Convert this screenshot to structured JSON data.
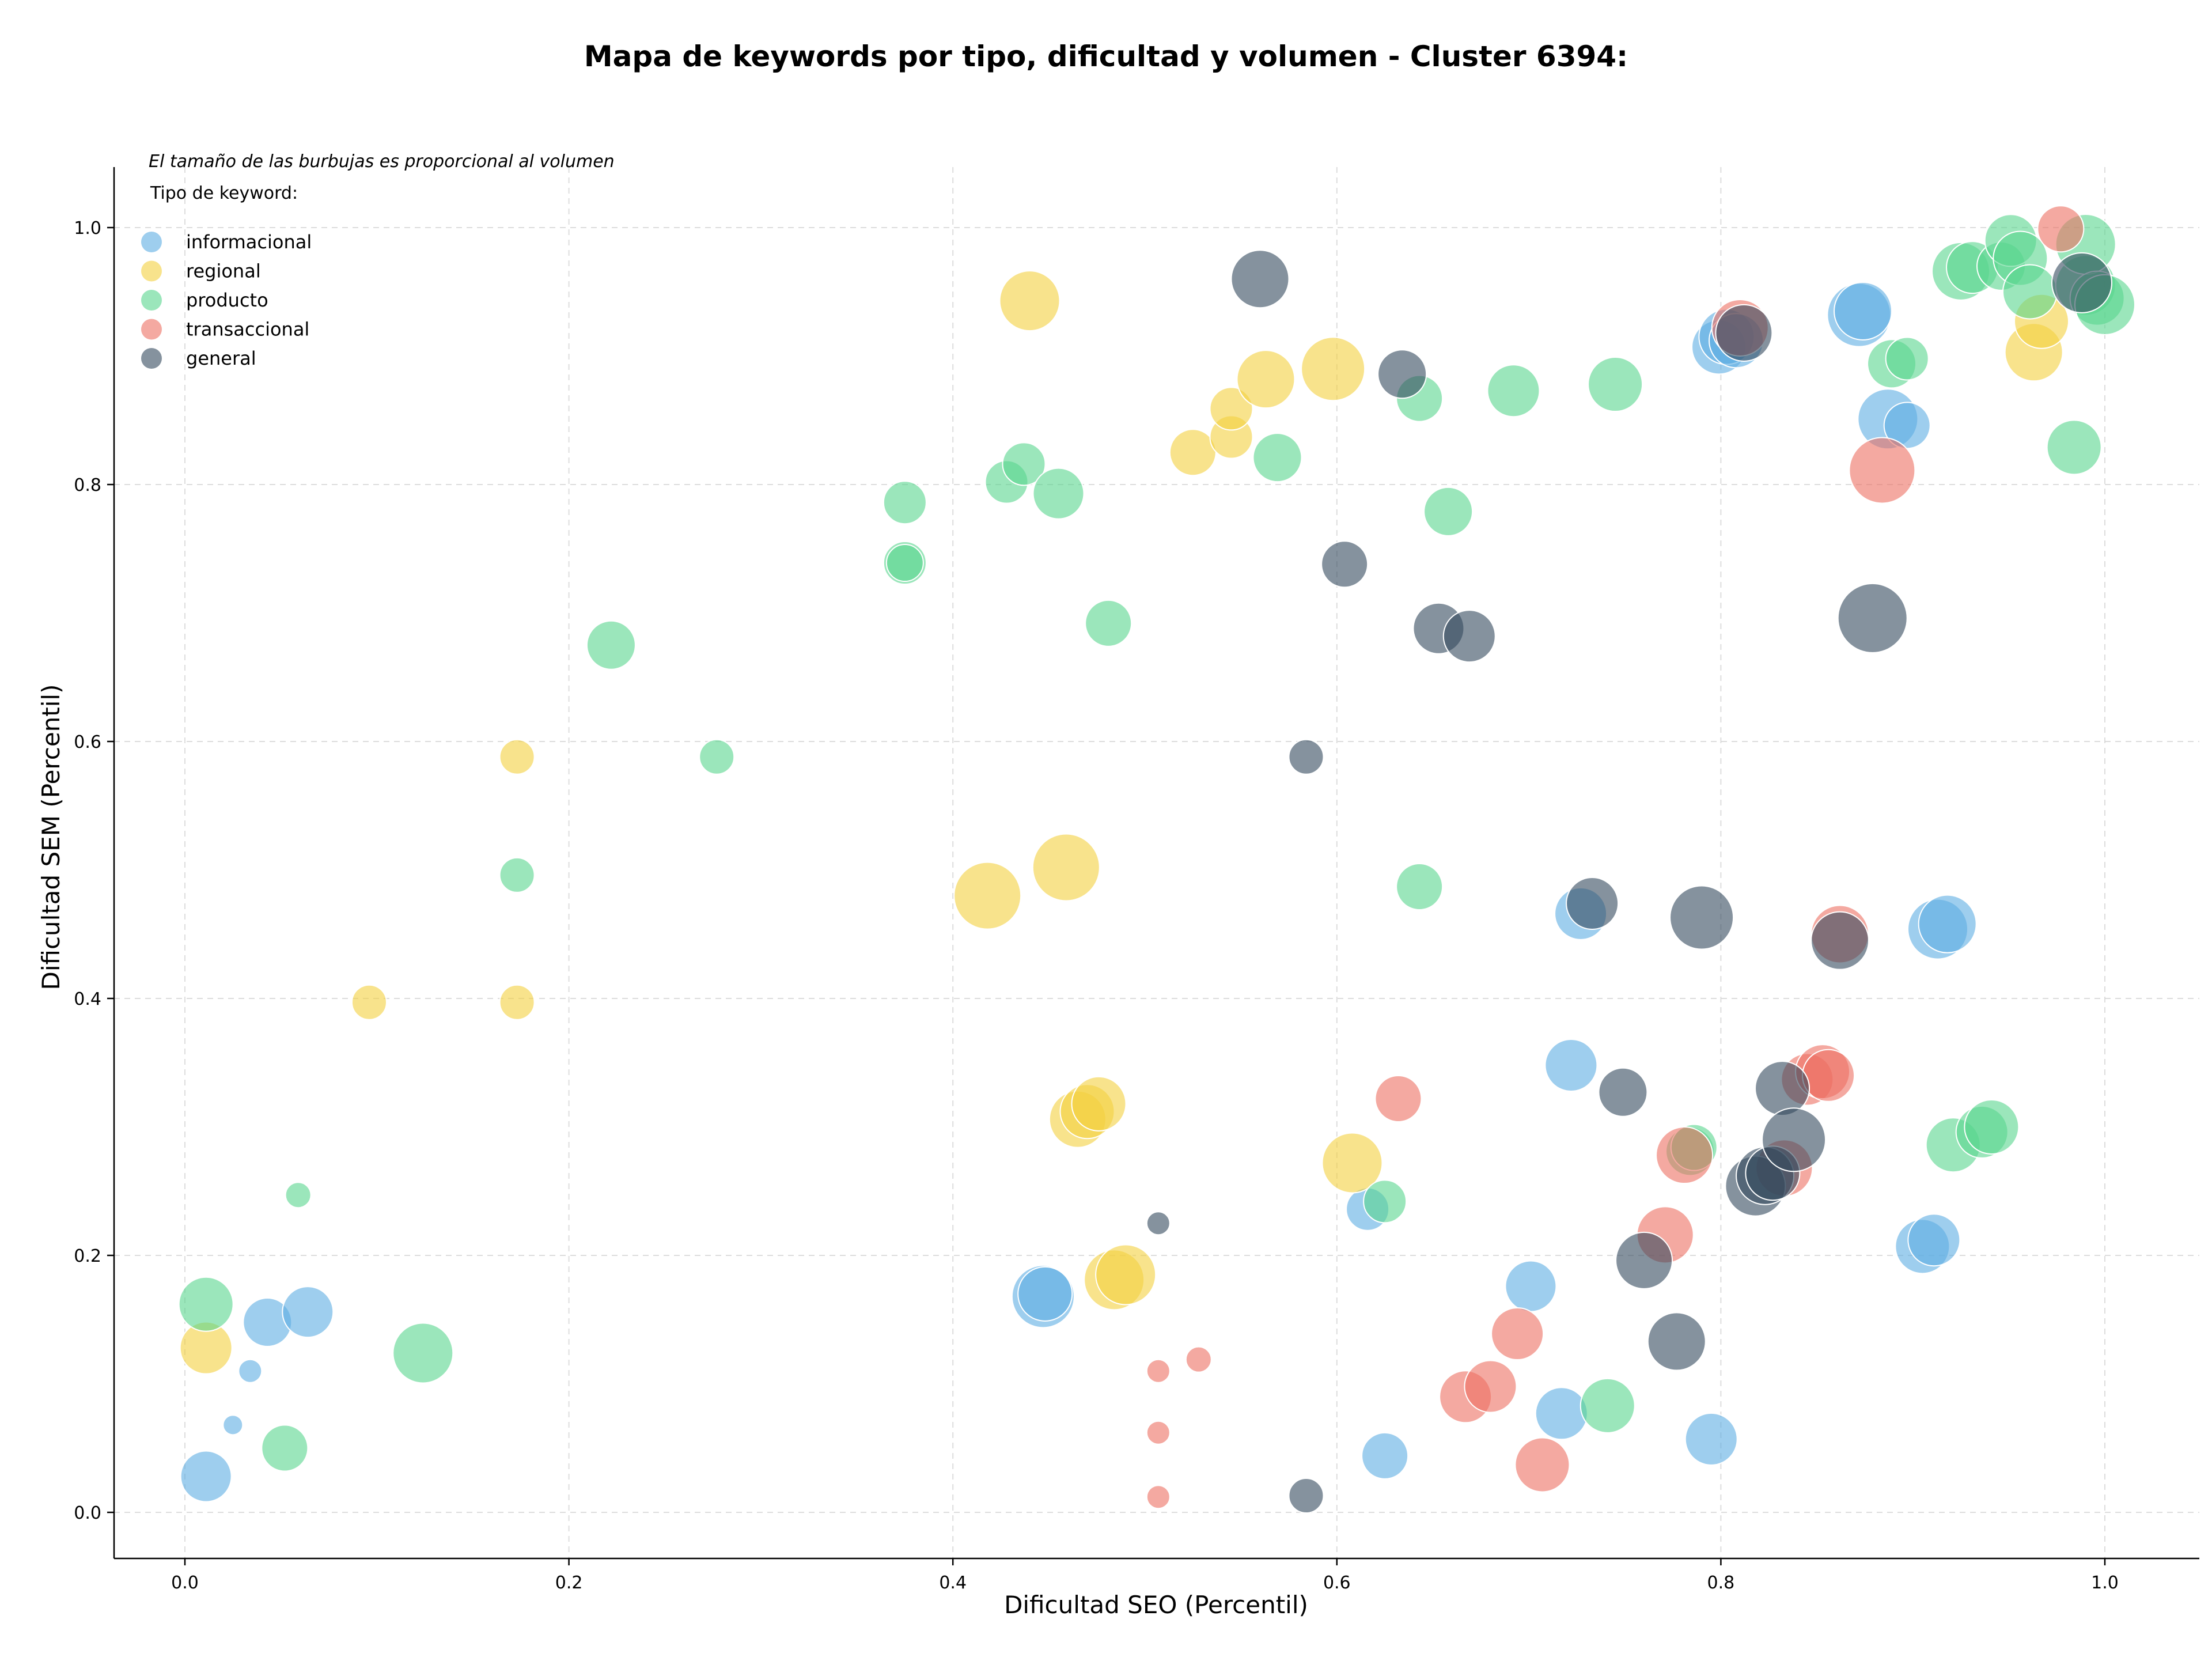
{
  "chart_data": {
    "type": "scatter",
    "title": "Mapa de keywords por tipo, dificultad y volumen - Cluster 6394:",
    "xlabel": "Dificultad SEO (Percentil)",
    "ylabel": "Dificultad SEM (Percentil)",
    "xlim": [
      -0.036,
      1.048
    ],
    "ylim": [
      -0.036,
      1.048
    ],
    "xticks": [
      "0.0",
      "0.2",
      "0.4",
      "0.6",
      "0.8",
      "1.0"
    ],
    "yticks": [
      "0.0",
      "0.2",
      "0.4",
      "0.6",
      "0.8",
      "1.0"
    ],
    "grid": true,
    "note": "El tamaño de las burbujas es proporcional al volumen",
    "legend_title": "Tipo de keyword:",
    "legend_position": "top-left",
    "series": [
      {
        "name": "informacional",
        "color": "#5DADE2",
        "points": [
          {
            "x": 0.011,
            "y": 0.028,
            "s": 44
          },
          {
            "x": 0.025,
            "y": 0.068,
            "s": 17
          },
          {
            "x": 0.034,
            "y": 0.11,
            "s": 20
          },
          {
            "x": 0.043,
            "y": 0.148,
            "s": 42
          },
          {
            "x": 0.064,
            "y": 0.156,
            "s": 44
          },
          {
            "x": 0.447,
            "y": 0.168,
            "s": 54
          },
          {
            "x": 0.448,
            "y": 0.17,
            "s": 47
          },
          {
            "x": 0.616,
            "y": 0.236,
            "s": 37
          },
          {
            "x": 0.625,
            "y": 0.044,
            "s": 40
          },
          {
            "x": 0.701,
            "y": 0.176,
            "s": 44
          },
          {
            "x": 0.717,
            "y": 0.077,
            "s": 45
          },
          {
            "x": 0.722,
            "y": 0.348,
            "s": 45
          },
          {
            "x": 0.727,
            "y": 0.466,
            "s": 45
          },
          {
            "x": 0.795,
            "y": 0.057,
            "s": 45
          },
          {
            "x": 0.799,
            "y": 0.907,
            "s": 47
          },
          {
            "x": 0.803,
            "y": 0.915,
            "s": 48
          },
          {
            "x": 0.808,
            "y": 0.912,
            "s": 47
          },
          {
            "x": 0.872,
            "y": 0.932,
            "s": 55
          },
          {
            "x": 0.874,
            "y": 0.935,
            "s": 50
          },
          {
            "x": 0.887,
            "y": 0.851,
            "s": 52
          },
          {
            "x": 0.897,
            "y": 0.846,
            "s": 40
          },
          {
            "x": 0.905,
            "y": 0.207,
            "s": 47
          },
          {
            "x": 0.911,
            "y": 0.212,
            "s": 45
          },
          {
            "x": 0.913,
            "y": 0.454,
            "s": 52
          },
          {
            "x": 0.918,
            "y": 0.458,
            "s": 50
          }
        ]
      },
      {
        "name": "regional",
        "color": "#F4D03F",
        "points": [
          {
            "x": 0.011,
            "y": 0.128,
            "s": 45
          },
          {
            "x": 0.096,
            "y": 0.397,
            "s": 30
          },
          {
            "x": 0.173,
            "y": 0.397,
            "s": 30
          },
          {
            "x": 0.173,
            "y": 0.588,
            "s": 30
          },
          {
            "x": 0.418,
            "y": 0.48,
            "s": 58
          },
          {
            "x": 0.44,
            "y": 0.943,
            "s": 52
          },
          {
            "x": 0.459,
            "y": 0.502,
            "s": 58
          },
          {
            "x": 0.465,
            "y": 0.306,
            "s": 49
          },
          {
            "x": 0.47,
            "y": 0.312,
            "s": 47
          },
          {
            "x": 0.476,
            "y": 0.318,
            "s": 47
          },
          {
            "x": 0.484,
            "y": 0.181,
            "s": 52
          },
          {
            "x": 0.49,
            "y": 0.185,
            "s": 52
          },
          {
            "x": 0.525,
            "y": 0.825,
            "s": 40
          },
          {
            "x": 0.545,
            "y": 0.837,
            "s": 37
          },
          {
            "x": 0.545,
            "y": 0.859,
            "s": 37
          },
          {
            "x": 0.563,
            "y": 0.882,
            "s": 50
          },
          {
            "x": 0.598,
            "y": 0.89,
            "s": 55
          },
          {
            "x": 0.608,
            "y": 0.272,
            "s": 52
          },
          {
            "x": 0.963,
            "y": 0.903,
            "s": 50
          },
          {
            "x": 0.967,
            "y": 0.927,
            "s": 47
          }
        ]
      },
      {
        "name": "producto",
        "color": "#58D68D",
        "points": [
          {
            "x": 0.011,
            "y": 0.162,
            "s": 47
          },
          {
            "x": 0.052,
            "y": 0.05,
            "s": 40
          },
          {
            "x": 0.059,
            "y": 0.247,
            "s": 22
          },
          {
            "x": 0.124,
            "y": 0.124,
            "s": 52
          },
          {
            "x": 0.173,
            "y": 0.496,
            "s": 30
          },
          {
            "x": 0.222,
            "y": 0.675,
            "s": 42
          },
          {
            "x": 0.277,
            "y": 0.588,
            "s": 30
          },
          {
            "x": 0.375,
            "y": 0.786,
            "s": 37
          },
          {
            "x": 0.375,
            "y": 0.739,
            "s": 37
          },
          {
            "x": 0.375,
            "y": 0.739,
            "s": 32
          },
          {
            "x": 0.428,
            "y": 0.802,
            "s": 37
          },
          {
            "x": 0.437,
            "y": 0.816,
            "s": 37
          },
          {
            "x": 0.455,
            "y": 0.793,
            "s": 44
          },
          {
            "x": 0.481,
            "y": 0.692,
            "s": 40
          },
          {
            "x": 0.569,
            "y": 0.821,
            "s": 42
          },
          {
            "x": 0.625,
            "y": 0.242,
            "s": 37
          },
          {
            "x": 0.643,
            "y": 0.867,
            "s": 40
          },
          {
            "x": 0.643,
            "y": 0.487,
            "s": 40
          },
          {
            "x": 0.658,
            "y": 0.779,
            "s": 42
          },
          {
            "x": 0.692,
            "y": 0.873,
            "s": 45
          },
          {
            "x": 0.741,
            "y": 0.083,
            "s": 47
          },
          {
            "x": 0.745,
            "y": 0.878,
            "s": 47
          },
          {
            "x": 0.784,
            "y": 0.281,
            "s": 42
          },
          {
            "x": 0.786,
            "y": 0.284,
            "s": 40
          },
          {
            "x": 0.889,
            "y": 0.894,
            "s": 42
          },
          {
            "x": 0.897,
            "y": 0.898,
            "s": 37
          },
          {
            "x": 0.921,
            "y": 0.286,
            "s": 47
          },
          {
            "x": 0.925,
            "y": 0.966,
            "s": 50
          },
          {
            "x": 0.931,
            "y": 0.969,
            "s": 45
          },
          {
            "x": 0.936,
            "y": 0.296,
            "s": 45
          },
          {
            "x": 0.941,
            "y": 0.3,
            "s": 47
          },
          {
            "x": 0.946,
            "y": 0.97,
            "s": 42
          },
          {
            "x": 0.951,
            "y": 0.99,
            "s": 45
          },
          {
            "x": 0.956,
            "y": 0.976,
            "s": 47
          },
          {
            "x": 0.961,
            "y": 0.95,
            "s": 47
          },
          {
            "x": 0.984,
            "y": 0.829,
            "s": 47
          },
          {
            "x": 0.99,
            "y": 0.955,
            "s": 52
          },
          {
            "x": 0.99,
            "y": 0.987,
            "s": 52
          },
          {
            "x": 0.996,
            "y": 0.945,
            "s": 47
          },
          {
            "x": 1.0,
            "y": 0.94,
            "s": 52
          }
        ]
      },
      {
        "name": "transaccional",
        "color": "#EC7063",
        "points": [
          {
            "x": 0.507,
            "y": 0.012,
            "s": 20
          },
          {
            "x": 0.507,
            "y": 0.062,
            "s": 20
          },
          {
            "x": 0.507,
            "y": 0.11,
            "s": 20
          },
          {
            "x": 0.528,
            "y": 0.119,
            "s": 22
          },
          {
            "x": 0.632,
            "y": 0.322,
            "s": 40
          },
          {
            "x": 0.667,
            "y": 0.09,
            "s": 45
          },
          {
            "x": 0.68,
            "y": 0.098,
            "s": 45
          },
          {
            "x": 0.694,
            "y": 0.139,
            "s": 45
          },
          {
            "x": 0.707,
            "y": 0.037,
            "s": 47
          },
          {
            "x": 0.771,
            "y": 0.216,
            "s": 49
          },
          {
            "x": 0.781,
            "y": 0.278,
            "s": 49
          },
          {
            "x": 0.81,
            "y": 0.922,
            "s": 49
          },
          {
            "x": 0.833,
            "y": 0.268,
            "s": 49
          },
          {
            "x": 0.845,
            "y": 0.337,
            "s": 45
          },
          {
            "x": 0.853,
            "y": 0.343,
            "s": 47
          },
          {
            "x": 0.856,
            "y": 0.34,
            "s": 45
          },
          {
            "x": 0.862,
            "y": 0.45,
            "s": 50
          },
          {
            "x": 0.884,
            "y": 0.811,
            "s": 57
          },
          {
            "x": 0.977,
            "y": 0.999,
            "s": 40
          }
        ]
      },
      {
        "name": "general",
        "color": "#34495E",
        "points": [
          {
            "x": 0.507,
            "y": 0.225,
            "s": 20
          },
          {
            "x": 0.56,
            "y": 0.96,
            "s": 50
          },
          {
            "x": 0.584,
            "y": 0.588,
            "s": 30
          },
          {
            "x": 0.584,
            "y": 0.013,
            "s": 30
          },
          {
            "x": 0.604,
            "y": 0.738,
            "s": 40
          },
          {
            "x": 0.634,
            "y": 0.886,
            "s": 42
          },
          {
            "x": 0.653,
            "y": 0.688,
            "s": 44
          },
          {
            "x": 0.669,
            "y": 0.682,
            "s": 45
          },
          {
            "x": 0.733,
            "y": 0.474,
            "s": 45
          },
          {
            "x": 0.749,
            "y": 0.327,
            "s": 42
          },
          {
            "x": 0.76,
            "y": 0.196,
            "s": 49
          },
          {
            "x": 0.777,
            "y": 0.133,
            "s": 50
          },
          {
            "x": 0.79,
            "y": 0.463,
            "s": 55
          },
          {
            "x": 0.812,
            "y": 0.918,
            "s": 49
          },
          {
            "x": 0.818,
            "y": 0.254,
            "s": 52
          },
          {
            "x": 0.823,
            "y": 0.262,
            "s": 50
          },
          {
            "x": 0.827,
            "y": 0.264,
            "s": 47
          },
          {
            "x": 0.832,
            "y": 0.33,
            "s": 47
          },
          {
            "x": 0.838,
            "y": 0.29,
            "s": 55
          },
          {
            "x": 0.862,
            "y": 0.445,
            "s": 50
          },
          {
            "x": 0.879,
            "y": 0.696,
            "s": 60
          },
          {
            "x": 0.988,
            "y": 0.957,
            "s": 52
          }
        ]
      }
    ]
  }
}
